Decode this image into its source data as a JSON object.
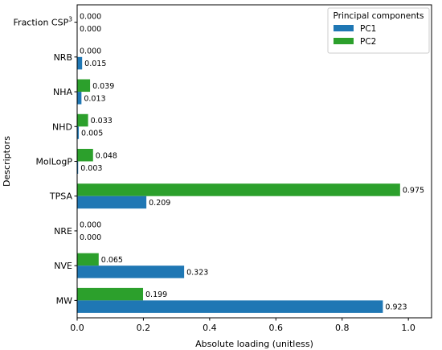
{
  "chart_data": {
    "type": "bar",
    "orientation": "horizontal",
    "categories": [
      "MW",
      "NVE",
      "NRE",
      "TPSA",
      "MolLogP",
      "NHD",
      "NHA",
      "NRB",
      "Fraction CSP3"
    ],
    "category_display": [
      {
        "base": "MW",
        "sup": ""
      },
      {
        "base": "NVE",
        "sup": ""
      },
      {
        "base": "NRE",
        "sup": ""
      },
      {
        "base": "TPSA",
        "sup": ""
      },
      {
        "base": "MolLogP",
        "sup": ""
      },
      {
        "base": "NHD",
        "sup": ""
      },
      {
        "base": "NHA",
        "sup": ""
      },
      {
        "base": "NRB",
        "sup": ""
      },
      {
        "base": "Fraction CSP",
        "sup": "3"
      }
    ],
    "series": [
      {
        "name": "PC1",
        "color": "#1f77b4",
        "values": [
          0.923,
          0.323,
          0.0,
          0.209,
          0.003,
          0.005,
          0.013,
          0.015,
          0.0
        ],
        "labels": [
          "0.923",
          "0.323",
          "0.000",
          "0.209",
          "0.003",
          "0.005",
          "0.013",
          "0.015",
          "0.000"
        ]
      },
      {
        "name": "PC2",
        "color": "#2ca02c",
        "values": [
          0.199,
          0.065,
          0.0,
          0.975,
          0.048,
          0.033,
          0.039,
          0.0,
          0.0
        ],
        "labels": [
          "0.199",
          "0.065",
          "0.000",
          "0.975",
          "0.048",
          "0.033",
          "0.039",
          "0.000",
          "0.000"
        ]
      }
    ],
    "xlabel": "Absolute loading (unitless)",
    "ylabel": "Descriptors",
    "xlim": [
      0.0,
      1.07
    ],
    "xticks": [
      0.0,
      0.2,
      0.4,
      0.6,
      0.8,
      1.0
    ],
    "xtick_labels": [
      "0.0",
      "0.2",
      "0.4",
      "0.6",
      "0.8",
      "1.0"
    ],
    "legend": {
      "title": "Principal components",
      "placement": "top-right",
      "entries": [
        "PC1",
        "PC2"
      ]
    },
    "grid": false
  }
}
